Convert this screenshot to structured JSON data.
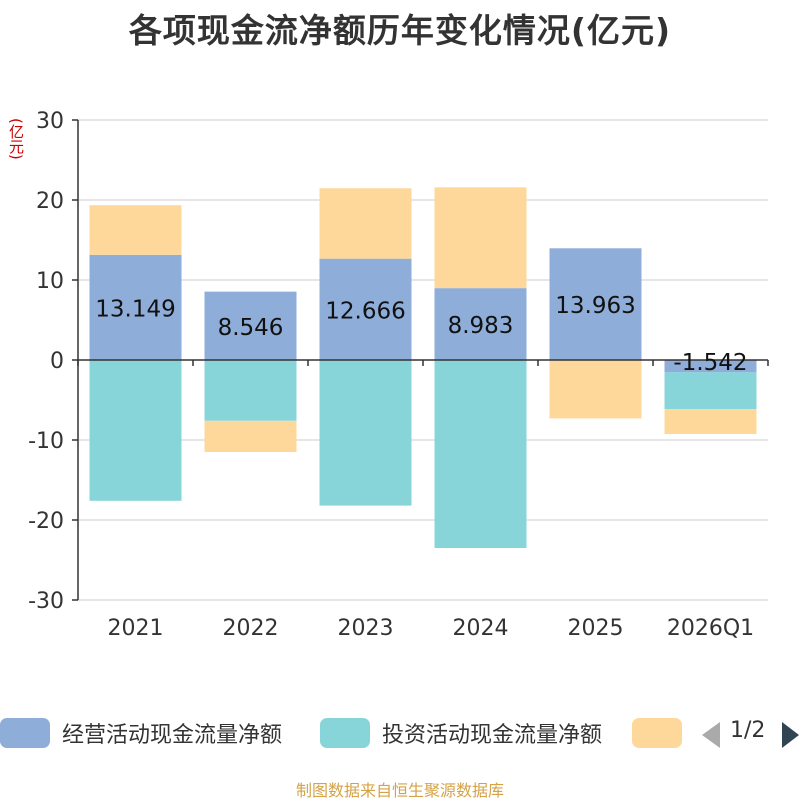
{
  "title": "各项现金流净额历年变化情况(亿元)",
  "unit_label": "(亿元)",
  "source": "制图数据来自恒生聚源数据库",
  "legend": {
    "items": [
      {
        "label": "经营活动现金流量净额",
        "color": "#8eadd9"
      },
      {
        "label": "投资活动现金流量净额",
        "color": "#87d5d9"
      },
      {
        "label": "",
        "color": "#fdd89a"
      }
    ],
    "page_text": "1/2"
  },
  "chart_data": {
    "type": "bar",
    "stacked": true,
    "categories": [
      "2021",
      "2022",
      "2023",
      "2024",
      "2025",
      "2026Q1"
    ],
    "ylim": [
      -30,
      30
    ],
    "yticks": [
      -30,
      -20,
      -10,
      0,
      10,
      20,
      30
    ],
    "series": [
      {
        "name": "经营活动现金流量净额",
        "color": "#8eadd9",
        "values": [
          13.149,
          8.546,
          12.666,
          8.983,
          13.963,
          -1.542
        ],
        "show_labels": true
      },
      {
        "name": "投资活动现金流量净额",
        "color": "#87d5d9",
        "values": [
          -17.6,
          -7.6,
          -18.2,
          -23.5,
          0,
          -4.6
        ],
        "show_labels": false
      },
      {
        "name": "",
        "color": "#fdd89a",
        "values": [
          6.2,
          -3.9,
          8.8,
          12.6,
          -7.3,
          -3.1
        ],
        "show_labels": false
      }
    ],
    "value_labels": [
      "13.149",
      "8.546",
      "12.666",
      "8.983",
      "13.963",
      "-1.542"
    ]
  }
}
